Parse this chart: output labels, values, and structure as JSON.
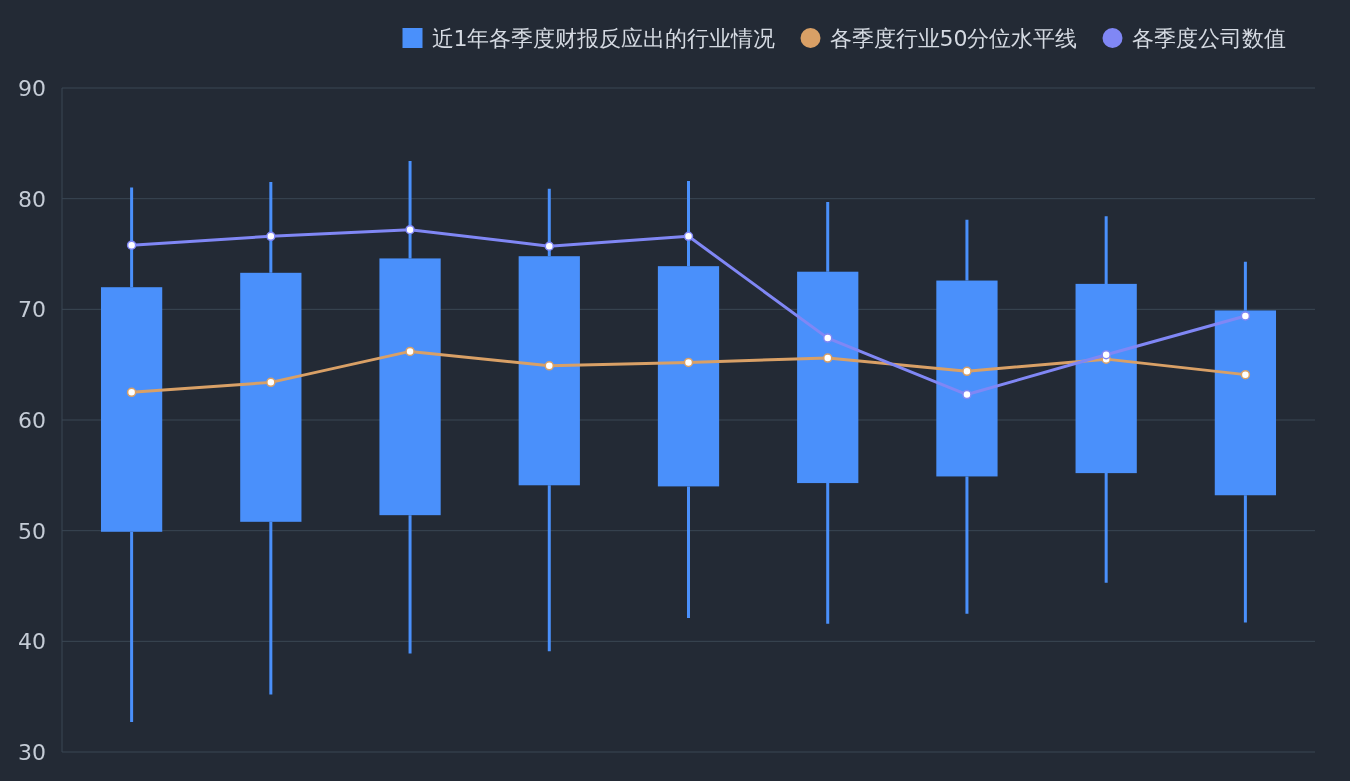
{
  "chart_data": {
    "type": "candlestick",
    "categories": [
      null,
      null,
      null,
      null,
      null,
      null,
      null,
      null,
      null
    ],
    "ylim": [
      30,
      90
    ],
    "yticks": [
      30,
      40,
      50,
      60,
      70,
      80,
      90
    ],
    "grid": "y",
    "legend": "top",
    "tick_labels": "y",
    "series": [
      {
        "name": "近1年各季度财报反应出的行业情况",
        "color": "#4a90fb",
        "ohlc": [
          [
            49.9,
            81.0,
            32.7,
            72.0
          ],
          [
            50.8,
            81.5,
            35.2,
            73.3
          ],
          [
            51.4,
            83.4,
            38.9,
            74.6
          ],
          [
            54.1,
            80.9,
            39.1,
            74.8
          ],
          [
            54.0,
            81.6,
            42.1,
            73.9
          ],
          [
            54.3,
            79.7,
            41.6,
            73.4
          ],
          [
            54.9,
            78.1,
            42.5,
            72.6
          ],
          [
            55.2,
            78.4,
            45.3,
            72.3
          ],
          [
            53.2,
            74.3,
            41.7,
            69.9
          ]
        ]
      },
      {
        "name": "各季度行业50分位水平线",
        "type": "line",
        "color": "#d9a066",
        "marker": "circle",
        "values": [
          62.5,
          63.4,
          66.2,
          64.9,
          65.2,
          65.6,
          64.4,
          65.5,
          64.1
        ]
      },
      {
        "name": "各季度公司数值",
        "type": "line",
        "color": "#8087f5",
        "marker": "circle",
        "values": [
          75.8,
          76.6,
          77.2,
          75.7,
          76.6,
          67.4,
          62.3,
          65.9,
          69.4
        ]
      }
    ]
  }
}
